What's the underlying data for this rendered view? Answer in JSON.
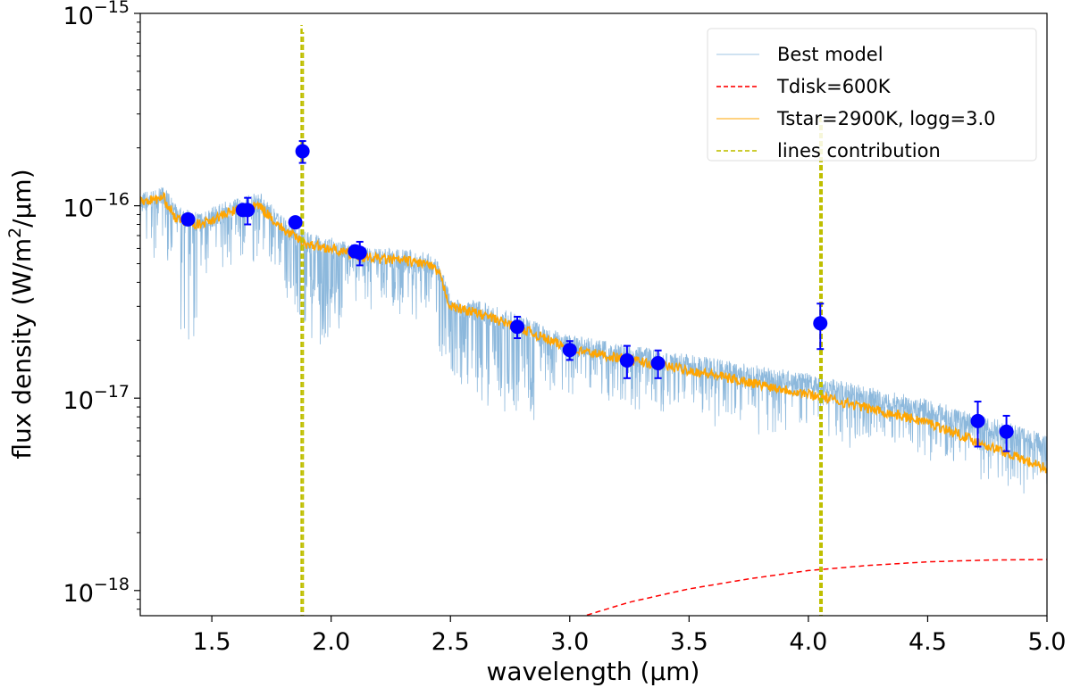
{
  "chart_data": {
    "type": "line",
    "title": "",
    "xlabel": "wavelength (µm)",
    "ylabel_main": "flux density (W/m",
    "ylabel_sup": "2",
    "ylabel_end": "/µm)",
    "xlim": [
      1.2,
      5.0
    ],
    "ylim": [
      7.4e-19,
      1e-15
    ],
    "yscale": "log",
    "grid": false,
    "legend_position": "top-right",
    "x_ticks": [
      "1.5",
      "2.0",
      "2.5",
      "3.0",
      "3.5",
      "4.0",
      "4.5",
      "5.0"
    ],
    "y_ticks": [
      {
        "base": "10",
        "exp": "−15",
        "value": 1e-15
      },
      {
        "base": "10",
        "exp": "−16",
        "value": 1e-16
      },
      {
        "base": "10",
        "exp": "−17",
        "value": 1e-17
      },
      {
        "base": "10",
        "exp": "−18",
        "value": 1e-18
      }
    ],
    "series": [
      {
        "name": "Best model",
        "color": "#7fb0d8",
        "style": "solid",
        "x": [
          1.2,
          1.3,
          1.35,
          1.45,
          1.6,
          1.7,
          1.8,
          1.9,
          2.0,
          2.1,
          2.2,
          2.3,
          2.4,
          2.45,
          2.5,
          2.6,
          2.8,
          3.0,
          3.5,
          4.0,
          4.5,
          5.0
        ],
        "y": [
          1.05e-16,
          1.12e-16,
          9e-17,
          8.3e-17,
          9.8e-17,
          1.05e-16,
          7.8e-17,
          6.5e-17,
          6.1e-17,
          5.6e-17,
          5.4e-17,
          5.3e-17,
          5.1e-17,
          4.6e-17,
          3.1e-17,
          2.9e-17,
          2.4e-17,
          1.9e-17,
          1.5e-17,
          1.2e-17,
          8.8e-18,
          5.8e-18
        ]
      },
      {
        "name": "Tdisk=600K",
        "color": "#ff0000",
        "style": "dashed",
        "x": [
          3.0,
          3.25,
          3.5,
          3.75,
          4.0,
          4.25,
          4.5,
          4.75,
          5.0
        ],
        "y": [
          7e-19,
          8.7e-19,
          1.02e-18,
          1.15e-18,
          1.27e-18,
          1.35e-18,
          1.41e-18,
          1.44e-18,
          1.45e-18
        ]
      },
      {
        "name": "Tstar=2900K, logg=3.0",
        "color": "#ffa500",
        "style": "solid",
        "x": [
          1.2,
          1.3,
          1.35,
          1.45,
          1.6,
          1.7,
          1.8,
          1.9,
          2.0,
          2.1,
          2.2,
          2.3,
          2.4,
          2.45,
          2.5,
          2.6,
          2.8,
          3.0,
          3.5,
          4.0,
          4.5,
          5.0
        ],
        "y": [
          1.05e-16,
          1.1e-16,
          8.5e-17,
          8e-17,
          9.5e-17,
          1e-16,
          7.5e-17,
          6.3e-17,
          6e-17,
          5.5e-17,
          5.3e-17,
          5.2e-17,
          5e-17,
          4.5e-17,
          3e-17,
          2.8e-17,
          2.3e-17,
          1.8e-17,
          1.4e-17,
          1.05e-17,
          7.5e-18,
          4.3e-18
        ]
      },
      {
        "name": "lines contribution",
        "color": "#bfbf00",
        "style": "dashed",
        "lines": [
          {
            "x": 1.876,
            "peak": 8.7e-16
          },
          {
            "x": 4.05,
            "peak": 3e-16
          }
        ]
      }
    ],
    "photometry": {
      "color": "#0000ff",
      "points": [
        {
          "x": 1.4,
          "y": 8.5e-17,
          "yerr": 3e-18
        },
        {
          "x": 1.63,
          "y": 9.5e-17,
          "yerr": 5e-18
        },
        {
          "x": 1.65,
          "y": 9.5e-17,
          "yerr": 1.5e-17
        },
        {
          "x": 1.85,
          "y": 8.2e-17,
          "yerr": 3e-18
        },
        {
          "x": 1.88,
          "y": 1.92e-16,
          "yerr": 2.5e-17
        },
        {
          "x": 2.1,
          "y": 5.8e-17,
          "yerr": 4e-18
        },
        {
          "x": 2.12,
          "y": 5.7e-17,
          "yerr": 8e-18
        },
        {
          "x": 2.78,
          "y": 2.35e-17,
          "yerr": 3e-18
        },
        {
          "x": 3.0,
          "y": 1.78e-17,
          "yerr": 2e-18
        },
        {
          "x": 3.24,
          "y": 1.57e-17,
          "yerr": 3e-18
        },
        {
          "x": 3.37,
          "y": 1.52e-17,
          "yerr": 2.5e-18
        },
        {
          "x": 4.05,
          "y": 2.45e-17,
          "yerr": 6.5e-18
        },
        {
          "x": 4.71,
          "y": 7.6e-18,
          "yerr": 2e-18
        },
        {
          "x": 4.83,
          "y": 6.7e-18,
          "yerr": 1.4e-18
        }
      ]
    }
  }
}
